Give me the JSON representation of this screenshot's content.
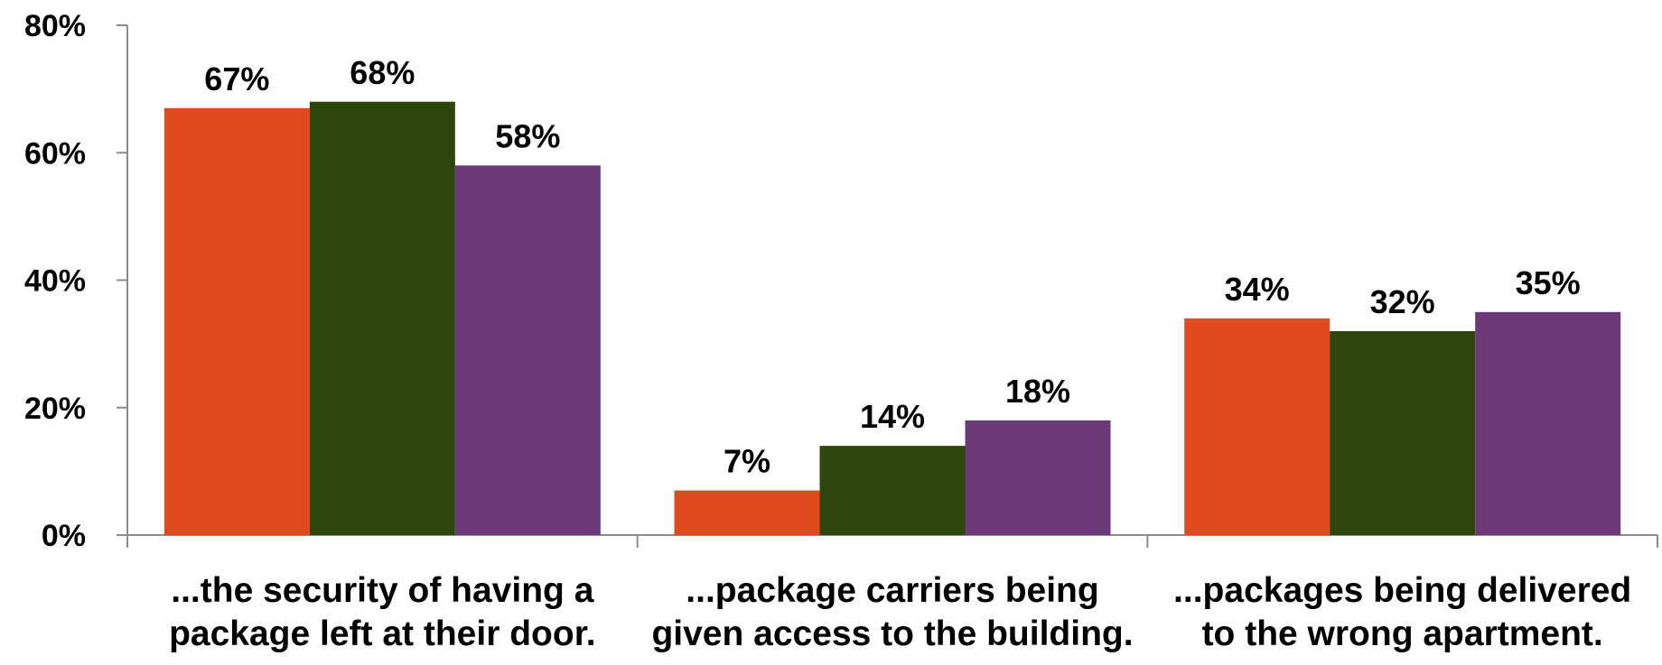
{
  "chart_data": {
    "type": "bar",
    "title": "",
    "xlabel": "",
    "ylabel": "",
    "ylim": [
      0,
      80
    ],
    "yticks": [
      "0%",
      "20%",
      "40%",
      "60%",
      "80%"
    ],
    "ytick_values": [
      0,
      20,
      40,
      60,
      80
    ],
    "grid": false,
    "legend": "none",
    "categories": [
      [
        "...the security of having a",
        "package left at their door."
      ],
      [
        "...package carriers being",
        "given access to the building."
      ],
      [
        "...packages being delivered",
        "to the wrong apartment."
      ]
    ],
    "series": [
      {
        "color": "#e04a1f",
        "values": [
          67,
          7,
          34
        ],
        "labels": [
          "67%",
          "7%",
          "34%"
        ]
      },
      {
        "color": "#2d460c",
        "values": [
          68,
          14,
          32
        ],
        "labels": [
          "68%",
          "14%",
          "32%"
        ]
      },
      {
        "color": "#6b3878",
        "values": [
          58,
          18,
          35
        ],
        "labels": [
          "58%",
          "18%",
          "35%"
        ]
      }
    ]
  }
}
